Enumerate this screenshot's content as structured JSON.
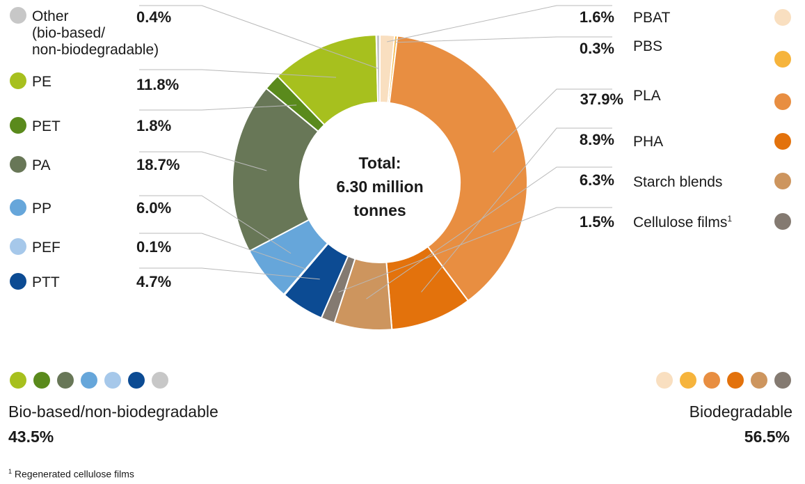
{
  "chart_data": {
    "type": "pie",
    "donut": true,
    "center_label": [
      "Total:",
      "6.30 million",
      "tonnes"
    ],
    "slices": [
      {
        "label": "PBAT",
        "value": 1.6,
        "value_label": "1.6%",
        "color": "#f9dfc0",
        "group": "Biodegradable"
      },
      {
        "label": "PBS",
        "value": 0.3,
        "value_label": "0.3%",
        "color": "#f6b43c",
        "group": "Biodegradable"
      },
      {
        "label": "PLA",
        "value": 37.9,
        "value_label": "37.9%",
        "color": "#e88e41",
        "group": "Biodegradable"
      },
      {
        "label": "PHA",
        "value": 8.9,
        "value_label": "8.9%",
        "color": "#e3720c",
        "group": "Biodegradable"
      },
      {
        "label": "Starch blends",
        "value": 6.3,
        "value_label": "6.3%",
        "color": "#cd955e",
        "group": "Biodegradable"
      },
      {
        "label": "Cellulose films",
        "label_sup": "1",
        "value": 1.5,
        "value_label": "1.5%",
        "color": "#847a71",
        "group": "Biodegradable"
      },
      {
        "label": "PTT",
        "value": 4.7,
        "value_label": "4.7%",
        "color": "#0c4b93",
        "group": "Bio-based/non-biodegradable"
      },
      {
        "label": "PEF",
        "value": 0.1,
        "value_label": "0.1%",
        "color": "#a6c8ea",
        "group": "Bio-based/non-biodegradable"
      },
      {
        "label": "PP",
        "value": 6.0,
        "value_label": "6.0%",
        "color": "#66a6da",
        "group": "Bio-based/non-biodegradable"
      },
      {
        "label": "PA",
        "value": 18.7,
        "value_label": "18.7%",
        "color": "#687757",
        "group": "Bio-based/non-biodegradable"
      },
      {
        "label": "PET",
        "value": 1.8,
        "value_label": "1.8%",
        "color": "#5a8a1c",
        "group": "Bio-based/non-biodegradable"
      },
      {
        "label": "PE",
        "value": 11.8,
        "value_label": "11.8%",
        "color": "#a7c01e",
        "group": "Bio-based/non-biodegradable"
      },
      {
        "label": "Other\n(bio-based/\nnon-biodegradable)",
        "value": 0.4,
        "value_label": "0.4%",
        "color": "#c7c7c7",
        "group": "Bio-based/non-biodegradable"
      }
    ],
    "groups": [
      {
        "name": "Bio-based/non-biodegradable",
        "value_label": "43.5%",
        "colors": [
          "#a7c01e",
          "#5a8a1c",
          "#687757",
          "#66a6da",
          "#a6c8ea",
          "#0c4b93",
          "#c7c7c7"
        ]
      },
      {
        "name": "Biodegradable",
        "value_label": "56.5%",
        "colors": [
          "#f9dfc0",
          "#f6b43c",
          "#e88e41",
          "#e3720c",
          "#cd955e",
          "#847a71"
        ]
      }
    ]
  },
  "footnote": {
    "sup": "1",
    "text": " Regenerated cellulose films"
  }
}
